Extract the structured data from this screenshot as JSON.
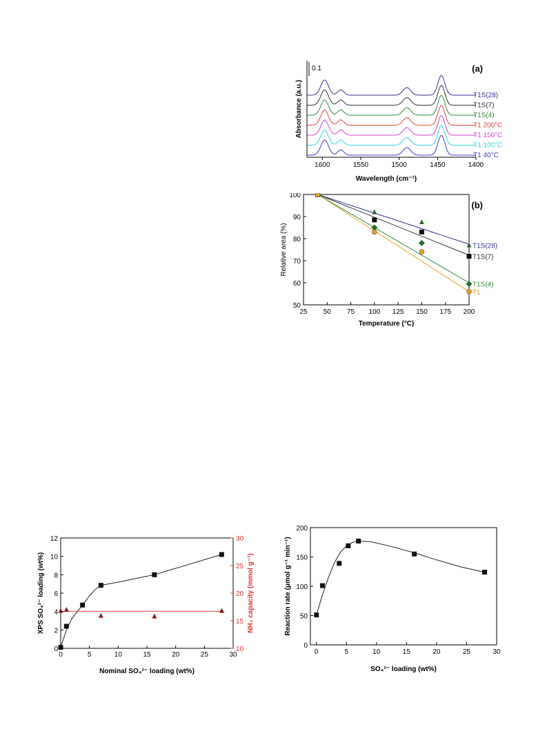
{
  "chart_data": [
    {
      "id": "a",
      "type": "line",
      "panel_label": "(a)",
      "xlabel": "Wavelength (cm⁻¹)",
      "ylabel": "Absorbance (a.u.)",
      "xlim": [
        1620,
        1400
      ],
      "x_ticks": [
        1600,
        1550,
        1500,
        1450,
        1400
      ],
      "scale_bar_label": "0.1",
      "series": [
        {
          "name": "T1S(28)",
          "color": "#333399",
          "offset": 6
        },
        {
          "name": "T1S(7)",
          "color": "#333333",
          "offset": 5
        },
        {
          "name": "T1S(4)",
          "color": "#2e8b3a",
          "offset": 4
        },
        {
          "name": "T1 200°C",
          "color": "#e8443a",
          "offset": 3
        },
        {
          "name": "T1 150°C",
          "color": "#d63fd6",
          "offset": 2
        },
        {
          "name": "T1 100°C",
          "color": "#2ed6e0",
          "offset": 1
        },
        {
          "name": "T1  40°C",
          "color": "#3a3ad0",
          "offset": 0
        }
      ],
      "peaks": [
        {
          "x": 1597,
          "width": 5,
          "height": 1.0
        },
        {
          "x": 1576,
          "width": 4,
          "height": 0.35
        },
        {
          "x": 1490,
          "width": 5,
          "height": 0.5
        },
        {
          "x": 1445,
          "width": 4.5,
          "height": 1.3
        }
      ]
    },
    {
      "id": "b",
      "type": "scatter",
      "panel_label": "(b)",
      "xlabel": "Temperature (°C)",
      "ylabel": "Relative area (%)",
      "xlim": [
        25,
        200
      ],
      "ylim": [
        50,
        100
      ],
      "x_ticks": [
        25,
        50,
        75,
        100,
        125,
        150,
        175,
        200
      ],
      "y_ticks": [
        50,
        60,
        70,
        80,
        90,
        100
      ],
      "series": [
        {
          "name": "T1S(28)",
          "color": "#333399",
          "marker_color": "#2a6a2a",
          "marker": "triangle",
          "x": [
            40,
            100,
            150,
            200
          ],
          "y": [
            100,
            92,
            87.5,
            77
          ],
          "fit": [
            [
              40,
              100
            ],
            [
              200,
              77.5
            ]
          ]
        },
        {
          "name": "T1S(7)",
          "color": "#333333",
          "marker_color": "#111111",
          "marker": "square",
          "x": [
            40,
            100,
            150,
            200
          ],
          "y": [
            100,
            88.5,
            83,
            72
          ],
          "fit": [
            [
              40,
              100
            ],
            [
              200,
              72.5
            ]
          ]
        },
        {
          "name": "T1S(4)",
          "color": "#2e8b3a",
          "marker_color": "#2a6a2a",
          "marker": "diamond",
          "x": [
            40,
            100,
            150,
            200
          ],
          "y": [
            100,
            85,
            78,
            59.5
          ],
          "fit": [
            [
              40,
              100
            ],
            [
              200,
              60
            ]
          ]
        },
        {
          "name": "T1",
          "color": "#e8a020",
          "marker_color": "#e8a020",
          "marker": "circle",
          "x": [
            40,
            100,
            150,
            200
          ],
          "y": [
            100,
            83,
            74,
            56
          ],
          "fit": [
            [
              40,
              100
            ],
            [
              200,
              56
            ]
          ]
        }
      ]
    },
    {
      "id": "c",
      "type": "scatter",
      "xlabel": "Nominal SO₄²⁻ loading (wt%)",
      "ylabel": "XPS  SO₄²⁻ loading (wt%)",
      "y2label": "NH₃ capacity (mmol g⁻¹)",
      "xlim": [
        0,
        30
      ],
      "ylim": [
        0,
        12
      ],
      "y2lim": [
        10,
        30
      ],
      "x_ticks": [
        0,
        5,
        10,
        15,
        20,
        25,
        30
      ],
      "y_ticks": [
        0,
        2,
        4,
        6,
        8,
        10,
        12
      ],
      "y2_ticks": [
        10,
        15,
        20,
        25,
        30
      ],
      "series": [
        {
          "name": "XPS",
          "axis": "left",
          "marker": "square",
          "color": "#111111",
          "x": [
            0,
            1,
            3.8,
            7,
            16.3,
            28
          ],
          "y": [
            0.1,
            2.4,
            4.7,
            6.85,
            8.0,
            10.2
          ],
          "curve": [
            [
              0,
              0.1
            ],
            [
              1,
              2.0
            ],
            [
              2,
              3.3
            ],
            [
              3.8,
              4.7
            ],
            [
              5,
              5.7
            ],
            [
              6,
              6.4
            ],
            [
              7,
              6.85
            ],
            [
              10,
              7.2
            ],
            [
              16.3,
              8.0
            ],
            [
              28,
              10.2
            ]
          ]
        },
        {
          "name": "NH3",
          "axis": "right",
          "marker": "triangle",
          "color": "#8b1a1a",
          "x": [
            0,
            1,
            7,
            16.3,
            28
          ],
          "y": [
            16.8,
            17.0,
            15.9,
            15.8,
            16.8
          ],
          "line_y": 16.7,
          "line_color": "#e04040"
        }
      ]
    },
    {
      "id": "d",
      "type": "scatter",
      "xlabel": "SO₄²⁻ loading (wt%)",
      "ylabel": "Reaction rate (μmol g⁻¹ min⁻¹)",
      "xlim": [
        -1,
        30
      ],
      "ylim": [
        0,
        200
      ],
      "x_ticks": [
        0,
        5,
        10,
        15,
        20,
        25,
        30
      ],
      "y_ticks": [
        0,
        50,
        100,
        150,
        200
      ],
      "series": [
        {
          "marker": "square",
          "color": "#111111",
          "x": [
            0,
            1,
            3.8,
            5.3,
            7,
            16.3,
            28
          ],
          "y": [
            51,
            101,
            139,
            169,
            177,
            155,
            124
          ],
          "curve": [
            [
              0,
              51
            ],
            [
              1,
              85
            ],
            [
              2,
              115
            ],
            [
              3,
              140
            ],
            [
              4,
              158
            ],
            [
              5,
              169
            ],
            [
              6,
              175
            ],
            [
              7,
              177
            ],
            [
              9,
              176
            ],
            [
              12,
              169
            ],
            [
              16.3,
              157
            ],
            [
              20,
              145
            ],
            [
              24,
              133
            ],
            [
              28,
              124
            ]
          ]
        }
      ]
    }
  ]
}
